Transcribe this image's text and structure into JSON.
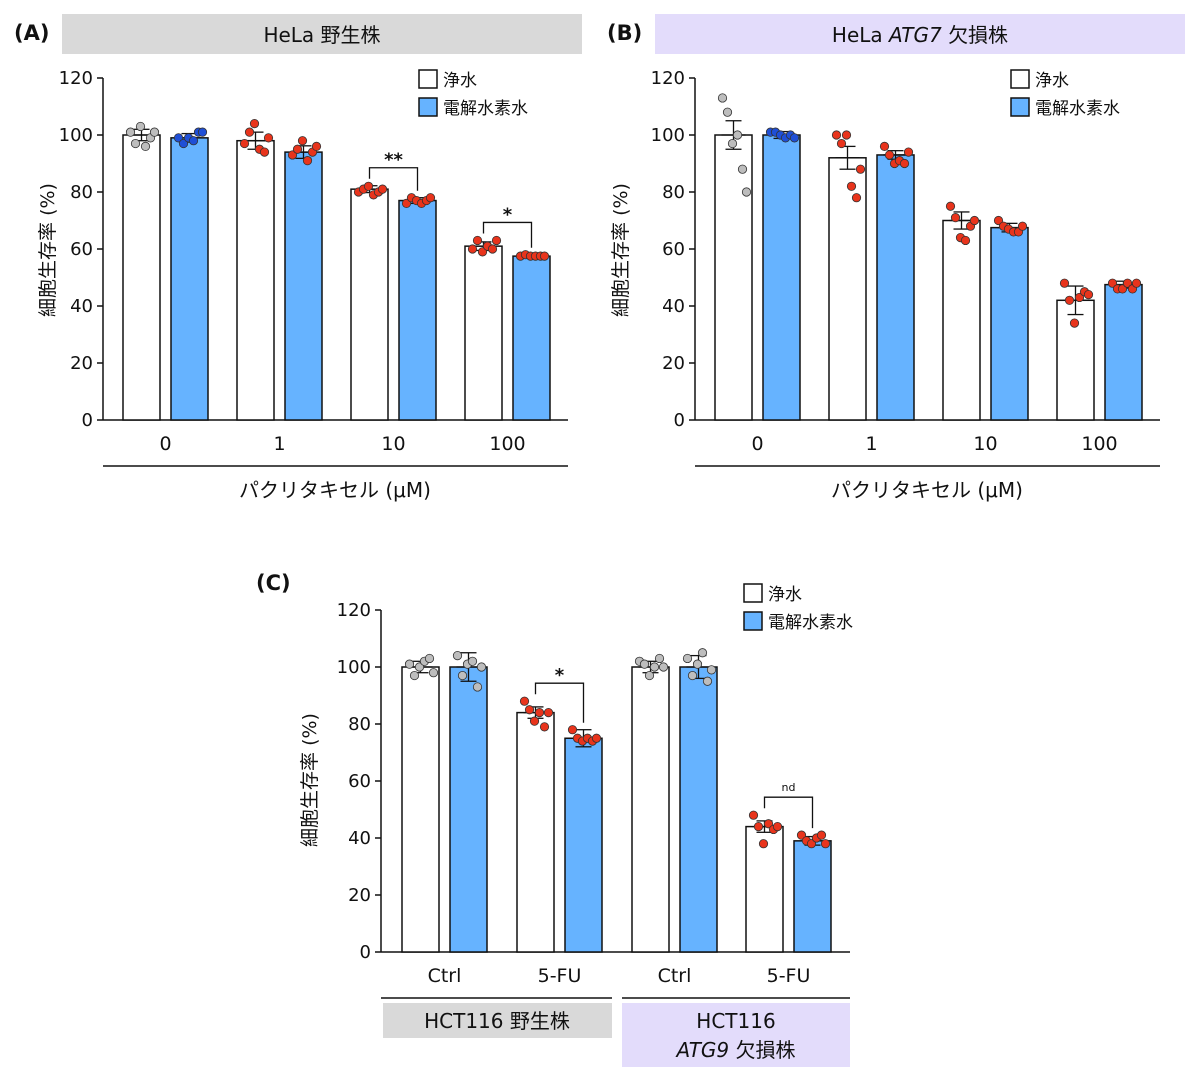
{
  "legend": {
    "pure": "浄水",
    "hydrogen": "電解水素水"
  },
  "colors": {
    "pure_fill": "#ffffff",
    "hydrogen_fill": "#66b3ff",
    "dot_gray": "#bdbdbd",
    "dot_blue": "#1f4fd6",
    "dot_red": "#e8341c",
    "header_gray": "#d9d9d9",
    "header_lavender": "#e3dcfb"
  },
  "chart_data": [
    {
      "id": "A",
      "panel_label": "(A)",
      "header": "HeLa 野生株",
      "type": "bar",
      "ylabel": "細胞生存率 (%)",
      "xlabel": "パクリタキセル (μM)",
      "ylim": [
        0,
        120
      ],
      "yticks": [
        "0",
        "20",
        "40",
        "60",
        "80",
        "100",
        "120"
      ],
      "categories": [
        "0",
        "1",
        "10",
        "100"
      ],
      "series": [
        {
          "name": "浄水",
          "values": [
            100,
            98,
            81,
            61
          ],
          "errors": [
            2,
            3,
            1.2,
            1.5
          ]
        },
        {
          "name": "電解水素水",
          "values": [
            99,
            94,
            77,
            57.5
          ],
          "errors": [
            1.5,
            2.2,
            1.0,
            0.5
          ]
        }
      ],
      "points": [
        [
          [
            101,
            97,
            103,
            96,
            99,
            101
          ],
          [
            99,
            97,
            99,
            98,
            101,
            101
          ]
        ],
        [
          [
            97,
            101,
            104,
            95,
            94,
            99
          ],
          [
            93,
            95,
            98,
            91,
            94,
            96
          ]
        ],
        [
          [
            80,
            81,
            82,
            79,
            80,
            81
          ],
          [
            76,
            78,
            77,
            76,
            77,
            78
          ]
        ],
        [
          [
            60,
            63,
            59,
            61,
            60,
            63
          ],
          [
            57.5,
            58,
            57.5,
            57.5,
            57.5,
            57.5
          ]
        ]
      ],
      "dot_colors": [
        [
          "gray",
          "blue"
        ],
        [
          "red",
          "red"
        ],
        [
          "red",
          "red"
        ],
        [
          "red",
          "red"
        ]
      ],
      "significance": [
        {
          "category": "10",
          "label": "**"
        },
        {
          "category": "100",
          "label": "*"
        }
      ]
    },
    {
      "id": "B",
      "panel_label": "(B)",
      "header_prefix": "HeLa",
      "header_gene": "ATG7",
      "header_suffix": "欠損株",
      "type": "bar",
      "ylabel": "細胞生存率 (%)",
      "xlabel": "パクリタキセル (μM)",
      "ylim": [
        0,
        120
      ],
      "yticks": [
        "0",
        "20",
        "40",
        "60",
        "80",
        "100",
        "120"
      ],
      "categories": [
        "0",
        "1",
        "10",
        "100"
      ],
      "series": [
        {
          "name": "浄水",
          "values": [
            100,
            92,
            70,
            42
          ],
          "errors": [
            5,
            4,
            3,
            5
          ]
        },
        {
          "name": "電解水素水",
          "values": [
            100,
            93,
            67.5,
            47.5
          ],
          "errors": [
            1.2,
            1.5,
            1.5,
            1.2
          ]
        }
      ],
      "points": [
        [
          [
            113,
            108,
            97,
            100,
            88,
            80
          ],
          [
            101,
            101,
            100,
            99,
            100,
            99
          ]
        ],
        [
          [
            100,
            97,
            100,
            82,
            78,
            88
          ],
          [
            96,
            93,
            90,
            91,
            90,
            94
          ]
        ],
        [
          [
            75,
            71,
            64,
            63,
            68,
            70
          ],
          [
            70,
            68,
            67,
            66,
            66,
            68
          ]
        ],
        [
          [
            48,
            42,
            34,
            43,
            45,
            44
          ],
          [
            48,
            46,
            46,
            48,
            46,
            48
          ]
        ]
      ],
      "dot_colors": [
        [
          "gray",
          "blue"
        ],
        [
          "red",
          "red"
        ],
        [
          "red",
          "red"
        ],
        [
          "red",
          "red"
        ]
      ],
      "significance": []
    },
    {
      "id": "C",
      "panel_label": "(C)",
      "type": "bar",
      "ylabel": "細胞生存率 (%)",
      "ylim": [
        0,
        120
      ],
      "yticks": [
        "0",
        "20",
        "40",
        "60",
        "80",
        "100",
        "120"
      ],
      "categories": [
        "Ctrl",
        "5-FU",
        "Ctrl",
        "5-FU"
      ],
      "groups": [
        {
          "label": "HCT116 野生株"
        },
        {
          "label_line1": "HCT116",
          "gene": "ATG9",
          "suffix": "欠損株"
        }
      ],
      "series": [
        {
          "name": "浄水",
          "values": [
            100,
            84,
            100,
            44
          ],
          "errors": [
            2,
            2,
            2,
            2
          ]
        },
        {
          "name": "電解水素水",
          "values": [
            100,
            75,
            100,
            39
          ],
          "errors": [
            5,
            3,
            4,
            1.5
          ]
        }
      ],
      "points": [
        [
          [
            101,
            97,
            100,
            102,
            103,
            98
          ],
          [
            104,
            97,
            101,
            102,
            93,
            100
          ]
        ],
        [
          [
            88,
            85,
            81,
            84,
            79,
            84
          ],
          [
            78,
            75,
            74,
            75,
            74,
            75
          ]
        ],
        [
          [
            102,
            101,
            97,
            100,
            103,
            100
          ],
          [
            103,
            97,
            101,
            105,
            95,
            99
          ]
        ],
        [
          [
            48,
            44,
            38,
            45,
            43,
            44
          ],
          [
            41,
            39,
            38,
            40,
            41,
            38
          ]
        ]
      ],
      "dot_colors": [
        [
          "gray",
          "gray"
        ],
        [
          "red",
          "red"
        ],
        [
          "gray",
          "gray"
        ],
        [
          "red",
          "red"
        ]
      ],
      "significance": [
        {
          "category_index": 1,
          "label": "*"
        },
        {
          "category_index": 3,
          "label": "nd"
        }
      ]
    }
  ]
}
